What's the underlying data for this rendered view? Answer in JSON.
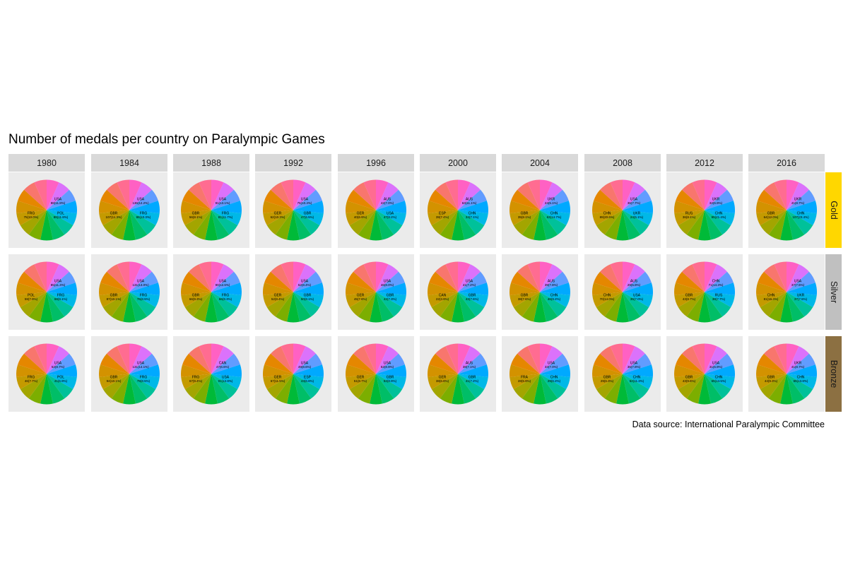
{
  "chart_data": {
    "type": "pie",
    "title": "Number of medals per country on Paralympic Games",
    "caption": "Data source: International Paralympic Committee",
    "years": [
      "1980",
      "1984",
      "1988",
      "1992",
      "1996",
      "2000",
      "2004",
      "2008",
      "2012",
      "2016"
    ],
    "medal_types": [
      {
        "name": "Gold",
        "color": "#FFD700"
      },
      {
        "name": "Silver",
        "color": "#C0C0C0"
      },
      {
        "name": "Bronze",
        "color": "#8C7042"
      }
    ],
    "panel_background": "#EBEBEB",
    "strip_background": "#D9D9D9",
    "palette": [
      "#FF61C3",
      "#DB72FB",
      "#619CFF",
      "#00A9FF",
      "#00B8E7",
      "#00C19A",
      "#00BE67",
      "#00BA38",
      "#7CAE00",
      "#A3A500",
      "#C49A00",
      "#D39200",
      "#E58700",
      "#F8766D",
      "#FF6C91"
    ],
    "slices_per_pie": 15,
    "panels": [
      {
        "year": "1980",
        "medal": "Gold",
        "labels": [
          {
            "country": "USA",
            "text": "88(11.8%)"
          },
          {
            "country": "POL",
            "text": "88(11.8%)"
          },
          {
            "country": "FRG",
            "text": "75(10.0%)"
          }
        ]
      },
      {
        "year": "1984",
        "medal": "Gold",
        "labels": [
          {
            "country": "USA",
            "text": "136(12.2%)"
          },
          {
            "country": "FRG",
            "text": "86(10.3%)"
          },
          {
            "country": "GBR",
            "text": "107(11.3%)"
          }
        ]
      },
      {
        "year": "1988",
        "medal": "Gold",
        "labels": [
          {
            "country": "USA",
            "text": "91(13.1%)"
          },
          {
            "country": "FRG",
            "text": "81(11.7%)"
          },
          {
            "country": "GBR",
            "text": "56(8.1%)"
          }
        ]
      },
      {
        "year": "1992",
        "medal": "Gold",
        "labels": [
          {
            "country": "USA",
            "text": "76(10.4%)"
          },
          {
            "country": "GBR",
            "text": "47(6.5%)"
          },
          {
            "country": "GER",
            "text": "62(10.3%)"
          }
        ]
      },
      {
        "year": "1996",
        "medal": "Gold",
        "labels": [
          {
            "country": "AUS",
            "text": "42(7.0%)"
          },
          {
            "country": "USA",
            "text": "47(8.2%)"
          },
          {
            "country": "GER",
            "text": "40(6.9%)"
          }
        ]
      },
      {
        "year": "2000",
        "medal": "Gold",
        "labels": [
          {
            "country": "AUS",
            "text": "63(11.1%)"
          },
          {
            "country": "CHN",
            "text": "34(7.1%)"
          },
          {
            "country": "ESP",
            "text": "39(7.4%)"
          }
        ]
      },
      {
        "year": "2004",
        "medal": "Gold",
        "labels": [
          {
            "country": "UKR",
            "text": "24(5.1%)"
          },
          {
            "country": "CHN",
            "text": "63(14.7%)"
          },
          {
            "country": "GBR",
            "text": "35(8.1%)"
          }
        ]
      },
      {
        "year": "2008",
        "medal": "Gold",
        "labels": [
          {
            "country": "USA",
            "text": "36(7.7%)"
          },
          {
            "country": "UKR",
            "text": "24(5.1%)"
          },
          {
            "country": "CHN",
            "text": "89(20.6%)"
          }
        ]
      },
      {
        "year": "2012",
        "medal": "Gold",
        "labels": [
          {
            "country": "UKR",
            "text": "32(6.9%)"
          },
          {
            "country": "CHN",
            "text": "95(21.4%)"
          },
          {
            "country": "RUS",
            "text": "36(8.1%)"
          }
        ]
      },
      {
        "year": "2016",
        "medal": "Gold",
        "labels": [
          {
            "country": "UKR",
            "text": "41(8.7%)"
          },
          {
            "country": "CHN",
            "text": "107(23.4%)"
          },
          {
            "country": "GBR",
            "text": "64(12.0%)"
          }
        ]
      },
      {
        "year": "1980",
        "medal": "Silver",
        "labels": [
          {
            "country": "USA",
            "text": "85(11.4%)"
          },
          {
            "country": "FRG",
            "text": "68(9.1%)"
          },
          {
            "country": "POL",
            "text": "59(7.9%)"
          }
        ]
      },
      {
        "year": "1984",
        "medal": "Silver",
        "labels": [
          {
            "country": "USA",
            "text": "131(13.0%)"
          },
          {
            "country": "FRG",
            "text": "76(8.5%)"
          },
          {
            "country": "GBR",
            "text": "87(10.1%)"
          }
        ]
      },
      {
        "year": "1988",
        "medal": "Silver",
        "labels": [
          {
            "country": "USA",
            "text": "90(12.6%)"
          },
          {
            "country": "FRG",
            "text": "66(9.3%)"
          },
          {
            "country": "GBR",
            "text": "66(9.3%)"
          }
        ]
      },
      {
        "year": "1992",
        "medal": "Silver",
        "labels": [
          {
            "country": "USA",
            "text": "52(8.4%)"
          },
          {
            "country": "GBR",
            "text": "50(8.1%)"
          },
          {
            "country": "GER",
            "text": "52(8.4%)"
          }
        ]
      },
      {
        "year": "1996",
        "medal": "Silver",
        "labels": [
          {
            "country": "USA",
            "text": "46(8.0%)"
          },
          {
            "country": "GBR",
            "text": "42(7.3%)"
          },
          {
            "country": "GER",
            "text": "45(7.8%)"
          }
        ]
      },
      {
        "year": "2000",
        "medal": "Silver",
        "labels": [
          {
            "country": "USA",
            "text": "41(7.2%)"
          },
          {
            "country": "GBR",
            "text": "43(7.6%)"
          },
          {
            "country": "CAN",
            "text": "22(3.9%)"
          }
        ]
      },
      {
        "year": "2004",
        "medal": "Silver",
        "labels": [
          {
            "country": "AUS",
            "text": "39(7.8%)"
          },
          {
            "country": "CHN",
            "text": "46(9.2%)"
          },
          {
            "country": "GBR",
            "text": "38(7.6%)"
          }
        ]
      },
      {
        "year": "2008",
        "medal": "Silver",
        "labels": [
          {
            "country": "AUS",
            "text": "29(5.8%)"
          },
          {
            "country": "USA",
            "text": "35(7.0%)"
          },
          {
            "country": "CHN",
            "text": "70(14.0%)"
          }
        ]
      },
      {
        "year": "2012",
        "medal": "Silver",
        "labels": [
          {
            "country": "CHN",
            "text": "71(14.3%)"
          },
          {
            "country": "RUS",
            "text": "38(7.7%)"
          },
          {
            "country": "GBR",
            "text": "43(8.7%)"
          }
        ]
      },
      {
        "year": "2016",
        "medal": "Silver",
        "labels": [
          {
            "country": "USA",
            "text": "37(7.5%)"
          },
          {
            "country": "UKR",
            "text": "37(7.5%)"
          },
          {
            "country": "CHN",
            "text": "81(16.4%)"
          }
        ]
      },
      {
        "year": "1980",
        "medal": "Bronze",
        "labels": [
          {
            "country": "USA",
            "text": "52(8.7%)"
          },
          {
            "country": "POL",
            "text": "41(6.9%)"
          },
          {
            "country": "FRG",
            "text": "46(7.7%)"
          }
        ]
      },
      {
        "year": "1984",
        "medal": "Bronze",
        "labels": [
          {
            "country": "USA",
            "text": "131(14.1%)"
          },
          {
            "country": "FRG",
            "text": "79(8.5%)"
          },
          {
            "country": "GBR",
            "text": "94(10.1%)"
          }
        ]
      },
      {
        "year": "1988",
        "medal": "Bronze",
        "labels": [
          {
            "country": "CAN",
            "text": "47(6.6%)"
          },
          {
            "country": "USA",
            "text": "91(12.8%)"
          },
          {
            "country": "FRG",
            "text": "67(9.4%)"
          }
        ]
      },
      {
        "year": "1992",
        "medal": "Bronze",
        "labels": [
          {
            "country": "USA",
            "text": "49(8.6%)"
          },
          {
            "country": "ESP",
            "text": "43(6.8%)"
          },
          {
            "country": "GER",
            "text": "67(11.5%)"
          }
        ]
      },
      {
        "year": "1996",
        "medal": "Bronze",
        "labels": [
          {
            "country": "USA",
            "text": "52(8.9%)"
          },
          {
            "country": "GBR",
            "text": "52(8.9%)"
          },
          {
            "country": "GER",
            "text": "51(8.7%)"
          }
        ]
      },
      {
        "year": "2000",
        "medal": "Bronze",
        "labels": [
          {
            "country": "AUS",
            "text": "38(7.1%)"
          },
          {
            "country": "GBR",
            "text": "41(7.2%)"
          },
          {
            "country": "GER",
            "text": "38(6.8%)"
          }
        ]
      },
      {
        "year": "2004",
        "medal": "Bronze",
        "labels": [
          {
            "country": "USA",
            "text": "33(7.0%)"
          },
          {
            "country": "CHN",
            "text": "29(6.2%)"
          },
          {
            "country": "FRA",
            "text": "28(5.9%)"
          }
        ]
      },
      {
        "year": "2008",
        "medal": "Bronze",
        "labels": [
          {
            "country": "USA",
            "text": "36(7.8%)"
          },
          {
            "country": "CHN",
            "text": "52(11.3%)"
          },
          {
            "country": "GBR",
            "text": "29(6.3%)"
          }
        ]
      },
      {
        "year": "2012",
        "medal": "Bronze",
        "labels": [
          {
            "country": "USA",
            "text": "31(6.9%)"
          },
          {
            "country": "CHN",
            "text": "65(14.5%)"
          },
          {
            "country": "GBR",
            "text": "43(9.6%)"
          }
        ]
      },
      {
        "year": "2016",
        "medal": "Bronze",
        "labels": [
          {
            "country": "UKR",
            "text": "41(8.7%)"
          },
          {
            "country": "CHN",
            "text": "65(13.8%)"
          },
          {
            "country": "GBR",
            "text": "44(9.3%)"
          }
        ]
      }
    ]
  }
}
